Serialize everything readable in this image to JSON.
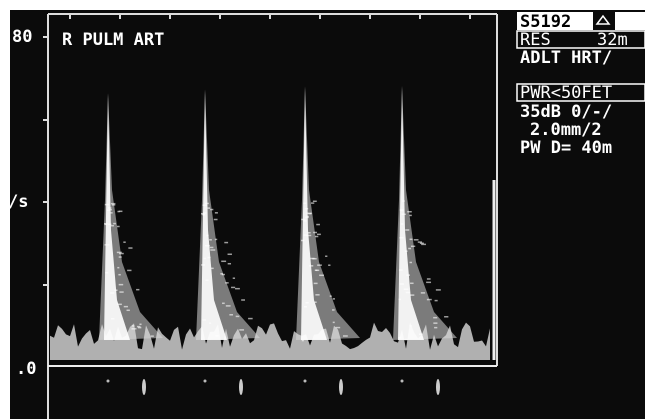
{
  "axis": {
    "top": "80",
    "middle": "/s",
    "zero": ".0"
  },
  "label": "R PULM ART",
  "panel": {
    "probe": "S5192",
    "res": "RES",
    "res_value": "32m",
    "preset": "ADLT HRT/",
    "power": "PWR<50FET",
    "gain": "35dB 0/-/",
    "sample": "2.0mm/2",
    "depth": "PW D= 40m"
  }
}
